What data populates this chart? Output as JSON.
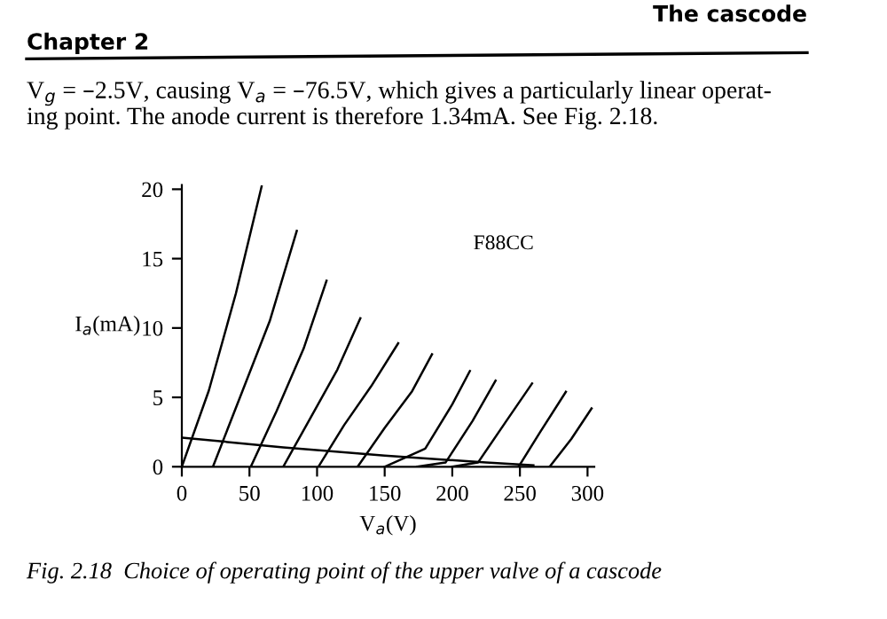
{
  "chart_data": {
    "type": "line",
    "xlabel": "V$_{a}$(V)",
    "ylabel": "I$_{a}$(mA)",
    "xlim": [
      0,
      305
    ],
    "ylim": [
      0,
      20.3
    ],
    "xticks": [
      0,
      50,
      100,
      150,
      200,
      250,
      300
    ],
    "yticks": [
      0,
      5,
      10,
      15,
      20
    ],
    "grid": false,
    "legend": false,
    "marker": "none",
    "line_style": "solid",
    "annotations": [
      "Chapter 2",
      "The cascode",
      "V$_{g}$ = –2.5V, causing V$_{a}$ = –76.5V, which gives a particularly linear operat-\ning point. The anode current is therefore 1.34mA. See Fig. 2.18.",
      "F88CC",
      "Fig. 2.18  Choice of operating point of the upper valve of a cascode"
    ],
    "series": [
      {
        "color": "#000000",
        "x": [
          0,
          20,
          40,
          59
        ],
        "values": [
          0,
          5.5,
          12.5,
          20.2
        ]
      },
      {
        "color": "#000000",
        "x": [
          23,
          45,
          65,
          85
        ],
        "values": [
          0,
          5.5,
          10.5,
          17
        ]
      },
      {
        "color": "#000000",
        "x": [
          51,
          70,
          90,
          107
        ],
        "values": [
          0,
          4,
          8.5,
          13.4
        ]
      },
      {
        "color": "#000000",
        "x": [
          75,
          95,
          115,
          132
        ],
        "values": [
          0,
          3.5,
          7,
          10.7
        ]
      },
      {
        "color": "#000000",
        "x": [
          101,
          120,
          140,
          160
        ],
        "values": [
          0,
          3,
          5.8,
          8.9
        ]
      },
      {
        "color": "#000000",
        "x": [
          130,
          150,
          170,
          185
        ],
        "values": [
          0,
          2.8,
          5.4,
          8.1
        ]
      },
      {
        "color": "#000000",
        "x": [
          150,
          180,
          200,
          213
        ],
        "values": [
          0,
          1.3,
          4.5,
          6.9
        ]
      },
      {
        "color": "#000000",
        "x": [
          174,
          195,
          215,
          232
        ],
        "values": [
          0,
          0.3,
          3.3,
          6.2
        ]
      },
      {
        "color": "#000000",
        "x": [
          200,
          219,
          240,
          259
        ],
        "values": [
          0,
          0.3,
          3.3,
          6.0
        ]
      },
      {
        "color": "#000000",
        "x": [
          249,
          265,
          284
        ],
        "values": [
          0,
          2.5,
          5.4
        ]
      },
      {
        "color": "#000000",
        "x": [
          272,
          288,
          303
        ],
        "values": [
          0,
          2.0,
          4.2
        ]
      },
      {
        "color": "#000000",
        "x": [
          0,
          75,
          150,
          225,
          260
        ],
        "values": [
          2.1,
          1.4,
          0.8,
          0.3,
          0.1
        ]
      }
    ]
  }
}
